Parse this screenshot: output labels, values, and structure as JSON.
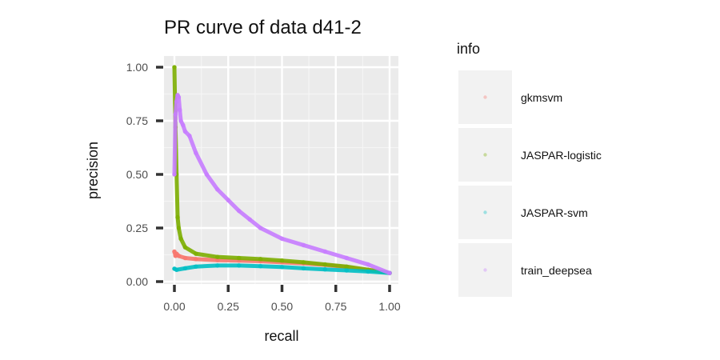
{
  "chart_data": {
    "type": "line",
    "title": "PR curve of data d41-2",
    "xlabel": "recall",
    "ylabel": "precision",
    "xlim": [
      0,
      1
    ],
    "ylim": [
      0,
      1
    ],
    "x_ticks": [
      "0.00",
      "0.25",
      "0.50",
      "0.75",
      "1.00"
    ],
    "y_ticks": [
      "0.00",
      "0.25",
      "0.50",
      "0.75",
      "1.00"
    ],
    "grid": true,
    "legend": {
      "title": "info",
      "position": "right"
    },
    "series": [
      {
        "name": "gkmsvm",
        "color": "#F8766D",
        "x": [
          0.0,
          0.005,
          0.01,
          0.02,
          0.05,
          0.1,
          0.2,
          0.3,
          0.4,
          0.5,
          0.6,
          0.7,
          0.8,
          0.9,
          1.0
        ],
        "y": [
          0.14,
          0.12,
          0.13,
          0.12,
          0.11,
          0.105,
          0.1,
          0.098,
          0.095,
          0.09,
          0.085,
          0.078,
          0.068,
          0.055,
          0.04
        ]
      },
      {
        "name": "JASPAR-logistic",
        "color": "#7CAE00",
        "x": [
          0.0,
          0.005,
          0.01,
          0.015,
          0.02,
          0.03,
          0.05,
          0.1,
          0.2,
          0.3,
          0.4,
          0.5,
          0.6,
          0.7,
          0.8,
          0.9,
          1.0
        ],
        "y": [
          1.0,
          0.72,
          0.5,
          0.3,
          0.25,
          0.2,
          0.16,
          0.13,
          0.115,
          0.11,
          0.105,
          0.098,
          0.09,
          0.08,
          0.07,
          0.055,
          0.04
        ]
      },
      {
        "name": "JASPAR-svm",
        "color": "#00BFC4",
        "x": [
          0.0,
          0.01,
          0.05,
          0.1,
          0.2,
          0.3,
          0.4,
          0.5,
          0.6,
          0.7,
          0.8,
          0.9,
          1.0
        ],
        "y": [
          0.06,
          0.055,
          0.062,
          0.07,
          0.075,
          0.075,
          0.072,
          0.068,
          0.062,
          0.057,
          0.052,
          0.047,
          0.04
        ]
      },
      {
        "name": "train_deepsea",
        "color": "#C77CFF",
        "x": [
          0.0,
          0.005,
          0.01,
          0.015,
          0.02,
          0.025,
          0.03,
          0.04,
          0.05,
          0.07,
          0.1,
          0.15,
          0.2,
          0.25,
          0.3,
          0.35,
          0.4,
          0.5,
          0.6,
          0.7,
          0.8,
          0.9,
          1.0
        ],
        "y": [
          0.5,
          0.78,
          0.84,
          0.87,
          0.86,
          0.8,
          0.75,
          0.73,
          0.7,
          0.68,
          0.6,
          0.5,
          0.43,
          0.38,
          0.33,
          0.29,
          0.25,
          0.2,
          0.17,
          0.14,
          0.11,
          0.08,
          0.04
        ]
      }
    ]
  }
}
